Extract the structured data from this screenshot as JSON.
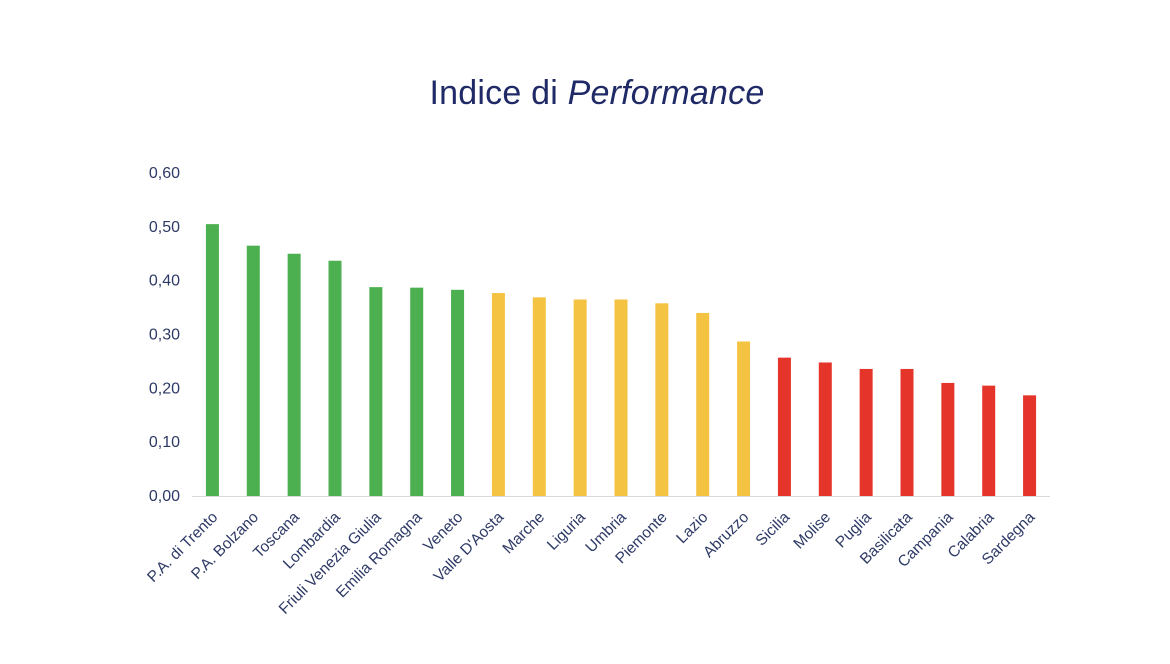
{
  "title": {
    "prefix": "Indice di ",
    "emphasis": "Performance"
  },
  "colors": {
    "title": "#1f2a66",
    "axis_text": "#2e3a66",
    "green": "#4caf50",
    "yellow": "#f5c342",
    "red": "#e5352a",
    "baseline": "#d9d9d9"
  },
  "chart_data": {
    "type": "bar",
    "title": "Indice di Performance",
    "xlabel": "",
    "ylabel": "",
    "ylim": [
      0,
      0.6
    ],
    "yticks": [
      "0,00",
      "0,10",
      "0,20",
      "0,30",
      "0,40",
      "0,50",
      "0,60"
    ],
    "grid": false,
    "categories": [
      "P.A. di Trento",
      "P.A. Bolzano",
      "Toscana",
      "Lombardia",
      "Friuli Venezia Giulia",
      "Emilia Romagna",
      "Veneto",
      "Valle D'Aosta",
      "Marche",
      "Liguria",
      "Umbria",
      "Piemonte",
      "Lazio",
      "Abruzzo",
      "Sicilia",
      "Molise",
      "Puglia",
      "Basilicata",
      "Campania",
      "Calabria",
      "Sardegna"
    ],
    "values": [
      0.505,
      0.465,
      0.45,
      0.437,
      0.388,
      0.387,
      0.383,
      0.377,
      0.369,
      0.365,
      0.365,
      0.358,
      0.34,
      0.287,
      0.257,
      0.248,
      0.236,
      0.236,
      0.21,
      0.205,
      0.187
    ],
    "bar_colors": [
      "green",
      "green",
      "green",
      "green",
      "green",
      "green",
      "green",
      "yellow",
      "yellow",
      "yellow",
      "yellow",
      "yellow",
      "yellow",
      "yellow",
      "red",
      "red",
      "red",
      "red",
      "red",
      "red",
      "red"
    ]
  }
}
